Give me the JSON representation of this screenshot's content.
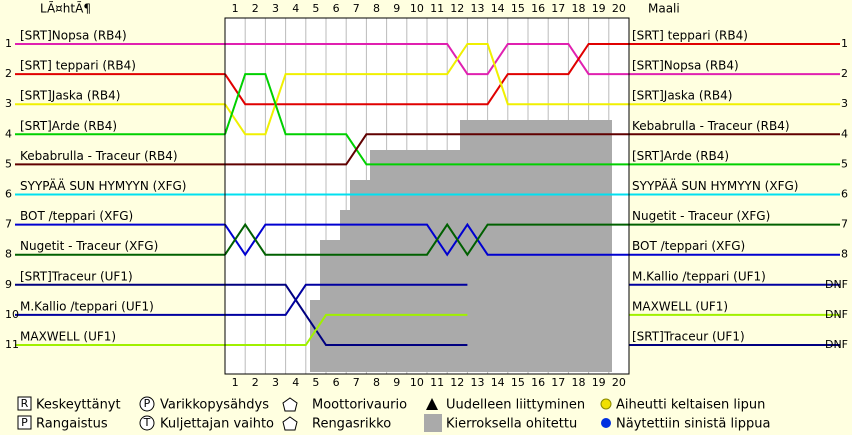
{
  "header": {
    "left": "LÃ¤htÃ¶",
    "right": "Maali"
  },
  "laps": [
    1,
    2,
    3,
    4,
    5,
    6,
    7,
    8,
    9,
    10,
    11,
    12,
    13,
    14,
    15,
    16,
    17,
    18,
    19,
    20
  ],
  "positions": [
    1,
    2,
    3,
    4,
    5,
    6,
    7,
    8,
    9,
    10,
    11
  ],
  "finish_labels": [
    "1",
    "2",
    "3",
    "4",
    "5",
    "6",
    "7",
    "8",
    "DNF",
    "DNF",
    "DNF"
  ],
  "finish_names": [
    "[SRT] teppari (RB4)",
    "[SRT]Nopsa (RB4)",
    "[SRT]Jaska (RB4)",
    "Kebabrulla - Traceur (RB4)",
    "[SRT]Arde (RB4)",
    "SYYPÄÄ SUN HYMYYN (XFG)",
    "Nugetit - Traceur (XFG)",
    "BOT /teppari (XFG)",
    "M.Kallio /teppari (UF1)",
    "MAXWELL (UF1)",
    "[SRT]Traceur (UF1)"
  ],
  "drivers": [
    {
      "name": "[SRT]Nopsa (RB4)",
      "color": "#e020b0",
      "finish": 2,
      "laps": [
        1,
        1,
        1,
        1,
        1,
        1,
        1,
        1,
        1,
        1,
        1,
        1,
        2,
        2,
        1,
        1,
        1,
        1,
        2,
        2,
        2
      ]
    },
    {
      "name": "[SRT] teppari (RB4)",
      "start_name": "[SRT] teppari (RB4)",
      "color": "#e00000",
      "finish": 1,
      "laps": [
        2,
        3,
        3,
        3,
        3,
        3,
        3,
        3,
        3,
        3,
        3,
        3,
        3,
        3,
        2,
        2,
        2,
        2,
        1,
        1,
        1
      ]
    },
    {
      "name": "[SRT]Jaska (RB4)",
      "color": "#f0f000",
      "finish": 3,
      "laps": [
        3,
        4,
        4,
        2,
        2,
        2,
        2,
        2,
        2,
        2,
        2,
        2,
        1,
        1,
        3,
        3,
        3,
        3,
        3,
        3,
        3
      ]
    },
    {
      "name": "[SRT]Arde (RB4)",
      "color": "#00d000",
      "finish": 5,
      "laps": [
        4,
        2,
        2,
        4,
        4,
        4,
        4,
        5,
        5,
        5,
        5,
        5,
        5,
        5,
        5,
        5,
        5,
        5,
        5,
        5,
        5
      ]
    },
    {
      "name": "Kebabrulla - Traceur (RB4)",
      "color": "#600000",
      "finish": 4,
      "laps": [
        5,
        5,
        5,
        5,
        5,
        5,
        5,
        4,
        4,
        4,
        4,
        4,
        4,
        4,
        4,
        4,
        4,
        4,
        4,
        4,
        4
      ]
    },
    {
      "name": "SYYPÄÄ SUN HYMYYN (XFG)",
      "color": "#00e0f0",
      "finish": 6,
      "laps": [
        6,
        6,
        6,
        6,
        6,
        6,
        6,
        6,
        6,
        6,
        6,
        6,
        6,
        6,
        6,
        6,
        6,
        6,
        6,
        6,
        6
      ]
    },
    {
      "name": "BOT /teppari (XFG)",
      "color": "#0000d0",
      "finish": 8,
      "laps": [
        7,
        8,
        7,
        7,
        7,
        7,
        7,
        7,
        7,
        7,
        7,
        8,
        7,
        8,
        8,
        8,
        8,
        8,
        8,
        8,
        8
      ]
    },
    {
      "name": "Nugetit - Traceur (XFG)",
      "color": "#006000",
      "finish": 7,
      "laps": [
        8,
        7,
        8,
        8,
        8,
        8,
        8,
        8,
        8,
        8,
        8,
        7,
        8,
        7,
        7,
        7,
        7,
        7,
        7,
        7,
        7
      ]
    },
    {
      "name": "[SRT]Traceur (UF1)",
      "color": "#000080",
      "finish": 11,
      "laps": [
        9,
        9,
        9,
        9,
        10,
        11,
        11,
        11,
        11,
        11,
        11,
        11,
        11,
        null,
        null,
        null,
        null,
        null,
        null,
        null,
        null
      ]
    },
    {
      "name": "M.Kallio /teppari (UF1)",
      "color": "#0000a0",
      "finish": 9,
      "laps": [
        10,
        10,
        10,
        10,
        9,
        9,
        9,
        9,
        9,
        9,
        9,
        9,
        9,
        null,
        null,
        null,
        null,
        null,
        null,
        null,
        null
      ]
    },
    {
      "name": "MAXWELL (UF1)",
      "color": "#a0f000",
      "finish": 10,
      "laps": [
        11,
        11,
        11,
        11,
        11,
        10,
        10,
        10,
        10,
        10,
        10,
        10,
        10,
        null,
        null,
        null,
        null,
        null,
        null,
        null,
        null
      ]
    }
  ],
  "legend": [
    "Keskeyttänyt",
    "Rangaistus",
    "Varikkopysähdys",
    "Kuljettajan vaihto",
    "Moottorivaurio",
    "Rengasrikko",
    "Uudelleen liittyminen",
    "Kierroksella ohitettu",
    "Aiheutti keltaisen lipun",
    "Näytettiin sinistä lippua"
  ]
}
